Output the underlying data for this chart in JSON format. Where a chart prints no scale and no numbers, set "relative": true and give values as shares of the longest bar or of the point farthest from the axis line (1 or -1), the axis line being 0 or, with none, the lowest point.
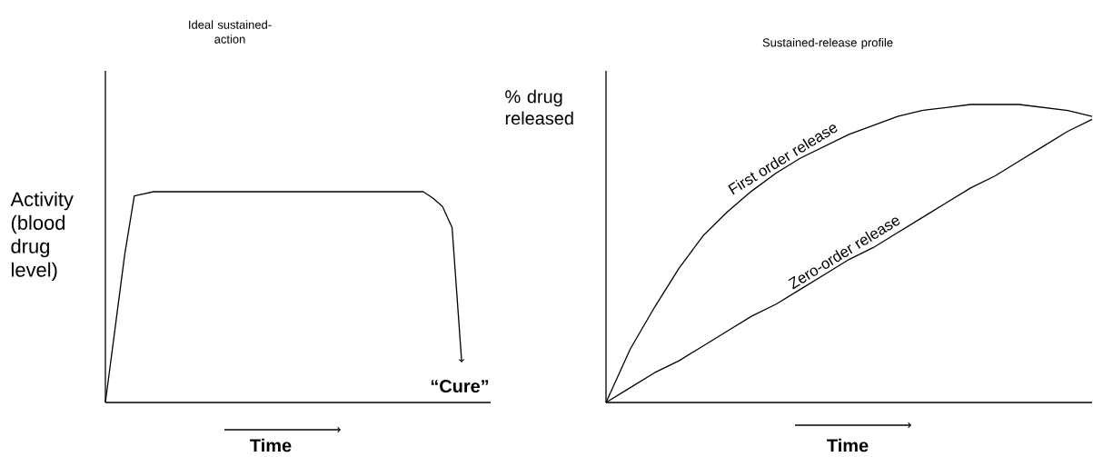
{
  "chart_data": [
    {
      "type": "line",
      "relative": true,
      "title": "Ideal sustained-action",
      "xlabel": "Time",
      "ylabel": "Activity (blood drug level)",
      "categories": [
        null,
        null,
        null,
        null,
        null,
        null,
        null,
        null,
        null,
        null,
        null,
        null,
        null,
        null,
        null,
        null,
        null,
        null,
        null,
        null,
        null,
        null,
        null,
        null,
        null,
        null,
        null,
        null,
        null,
        null,
        null,
        null,
        null,
        null,
        null,
        null,
        null,
        null,
        null,
        null,
        null
      ],
      "series": [
        {
          "color": "#000000",
          "values": [
            0,
            0.35,
            0.7,
            0.98,
            0.99,
            1,
            1,
            1,
            1,
            1,
            1,
            1,
            1,
            1,
            1,
            1,
            1,
            1,
            1,
            1,
            1,
            1,
            1,
            1,
            1,
            1,
            1,
            1,
            1,
            1,
            1,
            1,
            1,
            1,
            0.97,
            0.93,
            0.83,
            0.19,
            null,
            null,
            null
          ]
        }
      ],
      "annotations": [
        "“Cure”"
      ]
    },
    {
      "type": "line",
      "relative": true,
      "title": "Sustained-release profile",
      "xlabel": "Time",
      "ylabel": "% drug released",
      "categories": [
        null,
        null,
        null,
        null,
        null,
        null,
        null,
        null,
        null,
        null,
        null,
        null,
        null,
        null,
        null,
        null,
        null,
        null,
        null,
        null,
        null
      ],
      "series": [
        {
          "name": "First order release",
          "color": "#000000",
          "values": [
            0,
            0.18,
            0.32,
            0.45,
            0.56,
            0.64,
            0.71,
            0.77,
            0.82,
            0.86,
            0.9,
            0.93,
            0.96,
            0.98,
            0.99,
            1,
            1,
            1,
            0.99,
            0.98,
            0.96
          ]
        },
        {
          "name": "Zero-order release",
          "color": "#000000",
          "values": [
            0,
            0.05,
            0.1,
            0.14,
            0.19,
            0.24,
            0.29,
            0.33,
            0.38,
            0.43,
            0.48,
            0.52,
            0.57,
            0.62,
            0.67,
            0.72,
            0.76,
            0.81,
            0.86,
            0.91,
            0.95
          ]
        }
      ]
    }
  ]
}
